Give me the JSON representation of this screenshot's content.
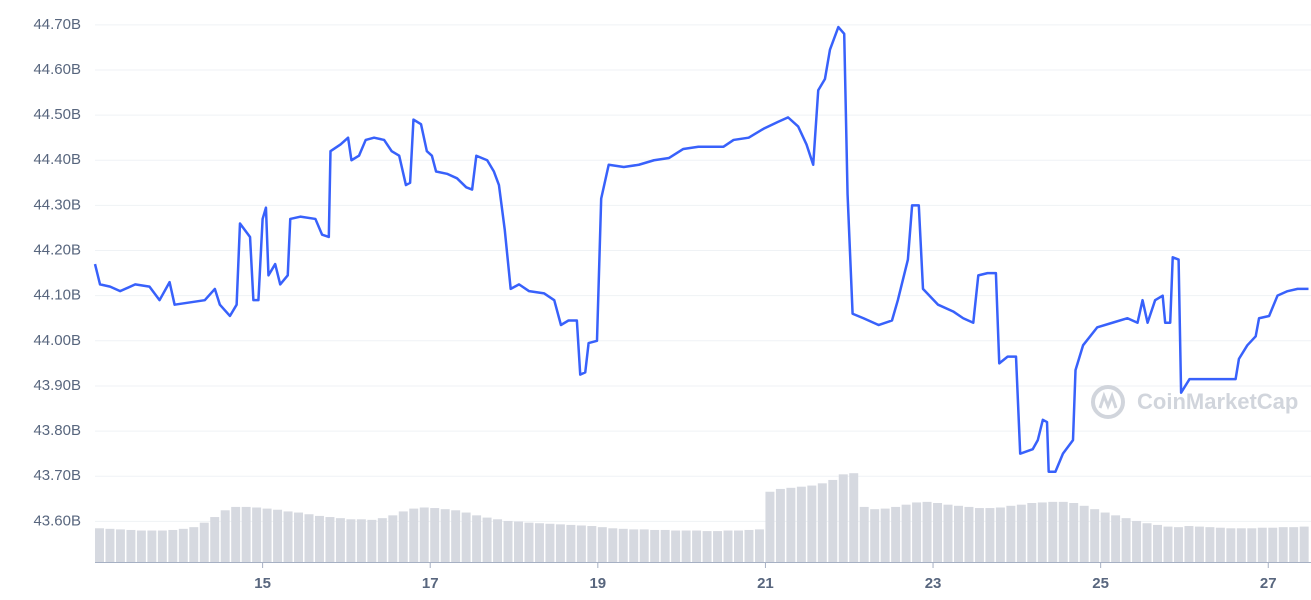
{
  "chart_data": {
    "type": "line",
    "watermark": "CoinMarketCap",
    "xlim": [
      13,
      27.51
    ],
    "xticks": [
      15,
      17,
      19,
      21,
      23,
      25,
      27
    ],
    "ylim": [
      43.51,
      44.755
    ],
    "yticks": [
      {
        "value": 43.6,
        "label": "43.60B"
      },
      {
        "value": 43.7,
        "label": "43.70B"
      },
      {
        "value": 43.8,
        "label": "43.80B"
      },
      {
        "value": 43.9,
        "label": "43.90B"
      },
      {
        "value": 44.0,
        "label": "44.00B"
      },
      {
        "value": 44.1,
        "label": "44.10B"
      },
      {
        "value": 44.2,
        "label": "44.20B"
      },
      {
        "value": 44.3,
        "label": "44.30B"
      },
      {
        "value": 44.4,
        "label": "44.40B"
      },
      {
        "value": 44.5,
        "label": "44.50B"
      },
      {
        "value": 44.6,
        "label": "44.60B"
      },
      {
        "value": 44.7,
        "label": "44.70B"
      }
    ],
    "y2lim": [
      0,
      100
    ],
    "grid": true,
    "series": [
      {
        "color": "#3861fb",
        "x": [
          13.0,
          13.06,
          13.18,
          13.3,
          13.48,
          13.65,
          13.77,
          13.89,
          13.95,
          14.13,
          14.31,
          14.43,
          14.49,
          14.61,
          14.69,
          14.73,
          14.85,
          14.89,
          14.95,
          15.0,
          15.04,
          15.07,
          15.15,
          15.21,
          15.3,
          15.33,
          15.45,
          15.63,
          15.71,
          15.79,
          15.81,
          15.93,
          16.02,
          16.06,
          16.15,
          16.23,
          16.33,
          16.45,
          16.54,
          16.63,
          16.71,
          16.76,
          16.8,
          16.89,
          16.96,
          17.02,
          17.07,
          17.2,
          17.32,
          17.43,
          17.5,
          17.55,
          17.68,
          17.76,
          17.82,
          17.89,
          17.96,
          18.06,
          18.18,
          18.36,
          18.48,
          18.56,
          18.65,
          18.75,
          18.79,
          18.85,
          18.89,
          18.99,
          19.04,
          19.13,
          19.31,
          19.49,
          19.67,
          19.85,
          20.02,
          20.2,
          20.5,
          20.62,
          20.8,
          20.98,
          21.15,
          21.27,
          21.39,
          21.49,
          21.57,
          21.63,
          21.71,
          21.77,
          21.87,
          21.94,
          21.98,
          22.04,
          22.17,
          22.35,
          22.51,
          22.58,
          22.7,
          22.75,
          22.83,
          22.88,
          23.06,
          23.24,
          23.36,
          23.48,
          23.54,
          23.65,
          23.75,
          23.79,
          23.89,
          23.99,
          24.04,
          24.19,
          24.25,
          24.31,
          24.36,
          24.38,
          24.46,
          24.55,
          24.67,
          24.7,
          24.79,
          24.96,
          25.14,
          25.32,
          25.44,
          25.5,
          25.56,
          25.65,
          25.74,
          25.77,
          25.83,
          25.86,
          25.93,
          25.96,
          26.06,
          26.21,
          26.39,
          26.61,
          26.65,
          26.75,
          26.85,
          26.89,
          27.01,
          27.11,
          27.23,
          27.35,
          27.48
        ],
        "values": [
          44.17,
          44.125,
          44.12,
          44.11,
          44.125,
          44.12,
          44.09,
          44.13,
          44.08,
          44.085,
          44.09,
          44.115,
          44.08,
          44.055,
          44.08,
          44.26,
          44.23,
          44.09,
          44.09,
          44.27,
          44.295,
          44.145,
          44.17,
          44.125,
          44.145,
          44.27,
          44.275,
          44.27,
          44.235,
          44.23,
          44.42,
          44.435,
          44.45,
          44.4,
          44.41,
          44.445,
          44.45,
          44.445,
          44.42,
          44.41,
          44.345,
          44.35,
          44.49,
          44.48,
          44.42,
          44.41,
          44.375,
          44.37,
          44.36,
          44.34,
          44.335,
          44.41,
          44.4,
          44.375,
          44.345,
          44.245,
          44.115,
          44.125,
          44.11,
          44.105,
          44.09,
          44.035,
          44.045,
          44.045,
          43.925,
          43.93,
          43.995,
          44.0,
          44.315,
          44.39,
          44.385,
          44.39,
          44.4,
          44.405,
          44.425,
          44.43,
          44.43,
          44.445,
          44.45,
          44.47,
          44.485,
          44.495,
          44.475,
          44.435,
          44.39,
          44.555,
          44.58,
          44.645,
          44.695,
          44.68,
          44.325,
          44.06,
          44.05,
          44.035,
          44.045,
          44.09,
          44.18,
          44.3,
          44.3,
          44.115,
          44.08,
          44.065,
          44.05,
          44.04,
          44.145,
          44.15,
          44.15,
          43.95,
          43.965,
          43.965,
          43.75,
          43.76,
          43.78,
          43.825,
          43.82,
          43.71,
          43.71,
          43.75,
          43.78,
          43.935,
          43.99,
          44.03,
          44.04,
          44.05,
          44.04,
          44.09,
          44.04,
          44.09,
          44.1,
          44.04,
          44.04,
          44.185,
          44.18,
          43.885,
          43.915,
          43.915,
          43.915,
          43.915,
          43.96,
          43.99,
          44.01,
          44.05,
          44.055,
          44.1,
          44.11,
          44.115,
          44.115
        ]
      },
      {
        "type": "bar",
        "axis": "y2",
        "color": "#d6d9e0",
        "x": [
          13,
          13.125,
          13.25,
          13.375,
          13.5,
          13.625,
          13.75,
          13.875,
          14,
          14.125,
          14.25,
          14.375,
          14.5,
          14.625,
          14.75,
          14.875,
          15,
          15.125,
          15.25,
          15.375,
          15.5,
          15.625,
          15.75,
          15.875,
          16,
          16.125,
          16.25,
          16.375,
          16.5,
          16.625,
          16.75,
          16.875,
          17,
          17.125,
          17.25,
          17.375,
          17.5,
          17.625,
          17.75,
          17.875,
          18,
          18.125,
          18.25,
          18.375,
          18.5,
          18.625,
          18.75,
          18.875,
          19,
          19.125,
          19.25,
          19.375,
          19.5,
          19.625,
          19.75,
          19.875,
          20,
          20.125,
          20.25,
          20.375,
          20.5,
          20.625,
          20.75,
          20.875,
          21,
          21.125,
          21.25,
          21.375,
          21.5,
          21.625,
          21.75,
          21.875,
          22,
          22.125,
          22.25,
          22.375,
          22.5,
          22.625,
          22.75,
          22.875,
          23,
          23.125,
          23.25,
          23.375,
          23.5,
          23.625,
          23.75,
          23.875,
          24,
          24.125,
          24.25,
          24.375,
          24.5,
          24.625,
          24.75,
          24.875,
          25,
          25.125,
          25.25,
          25.375,
          25.5,
          25.625,
          25.75,
          25.875,
          26,
          26.125,
          26.25,
          26.375,
          26.5,
          26.625,
          26.75,
          26.875,
          27,
          27.125,
          27.25,
          27.375
        ],
        "values": [
          6.0,
          5.9,
          5.8,
          5.7,
          5.6,
          5.6,
          5.6,
          5.7,
          5.9,
          6.2,
          7.0,
          8.0,
          9.2,
          9.8,
          9.8,
          9.7,
          9.5,
          9.3,
          9.0,
          8.8,
          8.5,
          8.2,
          8.0,
          7.8,
          7.6,
          7.6,
          7.5,
          7.8,
          8.3,
          9.0,
          9.5,
          9.7,
          9.6,
          9.4,
          9.2,
          8.8,
          8.3,
          7.9,
          7.6,
          7.3,
          7.2,
          7.0,
          6.9,
          6.8,
          6.7,
          6.6,
          6.5,
          6.4,
          6.2,
          6.0,
          5.9,
          5.8,
          5.8,
          5.7,
          5.7,
          5.6,
          5.6,
          5.6,
          5.5,
          5.5,
          5.6,
          5.6,
          5.7,
          5.8,
          12.5,
          13.0,
          13.2,
          13.4,
          13.6,
          14.0,
          14.6,
          15.6,
          15.8,
          9.8,
          9.4,
          9.5,
          9.8,
          10.2,
          10.6,
          10.7,
          10.5,
          10.2,
          10.0,
          9.8,
          9.6,
          9.6,
          9.7,
          10.0,
          10.2,
          10.5,
          10.6,
          10.7,
          10.7,
          10.5,
          10.0,
          9.4,
          8.8,
          8.3,
          7.8,
          7.3,
          6.9,
          6.6,
          6.3,
          6.2,
          6.4,
          6.3,
          6.2,
          6.1,
          6.0,
          6.0,
          6.0,
          6.1,
          6.1,
          6.2,
          6.2,
          6.3
        ]
      }
    ]
  }
}
